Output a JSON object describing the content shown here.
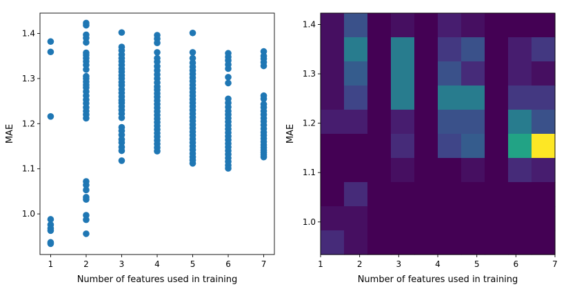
{
  "colors": {
    "marker": "#1f77b4",
    "axes": "#000000",
    "background": "#ffffff"
  },
  "chart_data": [
    {
      "type": "scatter",
      "xlabel": "Number of features used in training",
      "ylabel": "MAE",
      "xlim": [
        0.7,
        7.3
      ],
      "ylim": [
        0.91,
        1.445
      ],
      "x_ticks": [
        "1",
        "2",
        "3",
        "4",
        "5",
        "6",
        "7"
      ],
      "y_ticks": [
        "1.0",
        "1.1",
        "1.2",
        "1.3",
        "1.4"
      ],
      "grid": false,
      "points": [
        [
          1,
          1.382
        ],
        [
          1,
          1.359
        ],
        [
          1,
          1.216
        ],
        [
          1,
          0.988
        ],
        [
          1,
          0.976
        ],
        [
          1,
          0.968
        ],
        [
          1,
          0.963
        ],
        [
          1,
          0.937
        ],
        [
          1,
          0.934
        ],
        [
          2,
          1.423
        ],
        [
          2,
          1.418
        ],
        [
          2,
          1.397
        ],
        [
          2,
          1.39
        ],
        [
          2,
          1.38
        ],
        [
          2,
          1.357
        ],
        [
          2,
          1.352
        ],
        [
          2,
          1.345
        ],
        [
          2,
          1.338
        ],
        [
          2,
          1.33
        ],
        [
          2,
          1.32
        ],
        [
          2,
          1.305
        ],
        [
          2,
          1.3
        ],
        [
          2,
          1.293
        ],
        [
          2,
          1.286
        ],
        [
          2,
          1.28
        ],
        [
          2,
          1.271
        ],
        [
          2,
          1.262
        ],
        [
          2,
          1.253
        ],
        [
          2,
          1.245
        ],
        [
          2,
          1.236
        ],
        [
          2,
          1.228
        ],
        [
          2,
          1.22
        ],
        [
          2,
          1.212
        ],
        [
          2,
          1.072
        ],
        [
          2,
          1.064
        ],
        [
          2,
          1.053
        ],
        [
          2,
          1.037
        ],
        [
          2,
          1.032
        ],
        [
          2,
          0.997
        ],
        [
          2,
          0.987
        ],
        [
          2,
          0.956
        ],
        [
          3,
          1.402
        ],
        [
          3,
          1.37
        ],
        [
          3,
          1.362
        ],
        [
          3,
          1.353
        ],
        [
          3,
          1.345
        ],
        [
          3,
          1.338
        ],
        [
          3,
          1.33
        ],
        [
          3,
          1.322
        ],
        [
          3,
          1.315
        ],
        [
          3,
          1.307
        ],
        [
          3,
          1.3
        ],
        [
          3,
          1.292
        ],
        [
          3,
          1.285
        ],
        [
          3,
          1.276
        ],
        [
          3,
          1.268
        ],
        [
          3,
          1.26
        ],
        [
          3,
          1.252
        ],
        [
          3,
          1.246
        ],
        [
          3,
          1.238
        ],
        [
          3,
          1.23
        ],
        [
          3,
          1.222
        ],
        [
          3,
          1.213
        ],
        [
          3,
          1.192
        ],
        [
          3,
          1.184
        ],
        [
          3,
          1.175
        ],
        [
          3,
          1.165
        ],
        [
          3,
          1.158
        ],
        [
          3,
          1.148
        ],
        [
          3,
          1.14
        ],
        [
          3,
          1.118
        ],
        [
          4,
          1.396
        ],
        [
          4,
          1.388
        ],
        [
          4,
          1.379
        ],
        [
          4,
          1.358
        ],
        [
          4,
          1.345
        ],
        [
          4,
          1.337
        ],
        [
          4,
          1.327
        ],
        [
          4,
          1.318
        ],
        [
          4,
          1.309
        ],
        [
          4,
          1.3
        ],
        [
          4,
          1.291
        ],
        [
          4,
          1.282
        ],
        [
          4,
          1.275
        ],
        [
          4,
          1.267
        ],
        [
          4,
          1.259
        ],
        [
          4,
          1.251
        ],
        [
          4,
          1.243
        ],
        [
          4,
          1.235
        ],
        [
          4,
          1.227
        ],
        [
          4,
          1.219
        ],
        [
          4,
          1.211
        ],
        [
          4,
          1.203
        ],
        [
          4,
          1.195
        ],
        [
          4,
          1.187
        ],
        [
          4,
          1.179
        ],
        [
          4,
          1.171
        ],
        [
          4,
          1.163
        ],
        [
          4,
          1.155
        ],
        [
          4,
          1.147
        ],
        [
          4,
          1.139
        ],
        [
          5,
          1.401
        ],
        [
          5,
          1.358
        ],
        [
          5,
          1.345
        ],
        [
          5,
          1.335
        ],
        [
          5,
          1.326
        ],
        [
          5,
          1.318
        ],
        [
          5,
          1.31
        ],
        [
          5,
          1.302
        ],
        [
          5,
          1.294
        ],
        [
          5,
          1.286
        ],
        [
          5,
          1.278
        ],
        [
          5,
          1.27
        ],
        [
          5,
          1.262
        ],
        [
          5,
          1.254
        ],
        [
          5,
          1.246
        ],
        [
          5,
          1.238
        ],
        [
          5,
          1.23
        ],
        [
          5,
          1.222
        ],
        [
          5,
          1.214
        ],
        [
          5,
          1.206
        ],
        [
          5,
          1.198
        ],
        [
          5,
          1.19
        ],
        [
          5,
          1.182
        ],
        [
          5,
          1.174
        ],
        [
          5,
          1.166
        ],
        [
          5,
          1.158
        ],
        [
          5,
          1.15
        ],
        [
          5,
          1.142
        ],
        [
          5,
          1.134
        ],
        [
          5,
          1.126
        ],
        [
          5,
          1.119
        ],
        [
          5,
          1.112
        ],
        [
          6,
          1.356
        ],
        [
          6,
          1.348
        ],
        [
          6,
          1.34
        ],
        [
          6,
          1.331
        ],
        [
          6,
          1.322
        ],
        [
          6,
          1.303
        ],
        [
          6,
          1.29
        ],
        [
          6,
          1.255
        ],
        [
          6,
          1.246
        ],
        [
          6,
          1.237
        ],
        [
          6,
          1.228
        ],
        [
          6,
          1.22
        ],
        [
          6,
          1.212
        ],
        [
          6,
          1.204
        ],
        [
          6,
          1.196
        ],
        [
          6,
          1.188
        ],
        [
          6,
          1.18
        ],
        [
          6,
          1.172
        ],
        [
          6,
          1.164
        ],
        [
          6,
          1.156
        ],
        [
          6,
          1.148
        ],
        [
          6,
          1.14
        ],
        [
          6,
          1.132
        ],
        [
          6,
          1.124
        ],
        [
          6,
          1.116
        ],
        [
          6,
          1.108
        ],
        [
          6,
          1.101
        ],
        [
          7,
          1.36
        ],
        [
          7,
          1.35
        ],
        [
          7,
          1.344
        ],
        [
          7,
          1.336
        ],
        [
          7,
          1.328
        ],
        [
          7,
          1.262
        ],
        [
          7,
          1.255
        ],
        [
          7,
          1.243
        ],
        [
          7,
          1.236
        ],
        [
          7,
          1.228
        ],
        [
          7,
          1.22
        ],
        [
          7,
          1.212
        ],
        [
          7,
          1.205
        ],
        [
          7,
          1.197
        ],
        [
          7,
          1.189
        ],
        [
          7,
          1.181
        ],
        [
          7,
          1.174
        ],
        [
          7,
          1.167
        ],
        [
          7,
          1.16
        ],
        [
          7,
          1.153
        ],
        [
          7,
          1.147
        ],
        [
          7,
          1.141
        ],
        [
          7,
          1.136
        ],
        [
          7,
          1.131
        ],
        [
          7,
          1.126
        ]
      ]
    },
    {
      "type": "heatmap",
      "xlabel": "Number of features used in training",
      "ylabel": "MAE",
      "xlim": [
        1,
        7
      ],
      "ylim": [
        0.934,
        1.423
      ],
      "x_ticks": [
        "1",
        "2",
        "3",
        "4",
        "5",
        "6",
        "7"
      ],
      "y_ticks": [
        "1.0",
        "1.1",
        "1.2",
        "1.3",
        "1.4"
      ],
      "grid": false,
      "colormap": "viridis",
      "bins_x": 10,
      "bins_y": 10,
      "counts_top_to_bottom": [
        [
          1,
          6,
          0,
          1,
          0,
          2,
          1,
          0,
          0,
          0
        ],
        [
          1,
          10,
          0,
          10,
          0,
          4,
          6,
          0,
          2,
          4
        ],
        [
          1,
          7,
          0,
          10,
          0,
          6,
          3,
          0,
          2,
          1
        ],
        [
          1,
          5,
          0,
          10,
          0,
          10,
          10,
          0,
          4,
          4
        ],
        [
          2,
          2,
          0,
          2,
          0,
          6,
          6,
          0,
          10,
          6
        ],
        [
          0,
          0,
          0,
          3,
          0,
          5,
          7,
          0,
          14,
          24
        ],
        [
          0,
          0,
          0,
          1,
          0,
          0,
          1,
          0,
          3,
          2
        ],
        [
          0,
          3,
          0,
          0,
          0,
          0,
          0,
          0,
          0,
          0
        ],
        [
          1,
          1,
          0,
          0,
          0,
          0,
          0,
          0,
          0,
          0
        ],
        [
          3,
          1,
          0,
          0,
          0,
          0,
          0,
          0,
          0,
          0
        ]
      ]
    }
  ]
}
